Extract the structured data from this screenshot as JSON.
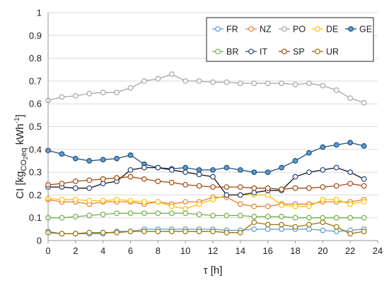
{
  "chart_data": {
    "type": "line",
    "title": "",
    "xlabel": "τ [h]",
    "ylabel": {
      "main": "CI [kg",
      "sub1": "CO",
      "sub2": "2",
      "sub3": "eq",
      "unit": " kWh",
      "sup": "-1",
      "close": "]"
    },
    "xlim": [
      0,
      24
    ],
    "ylim": [
      0,
      1
    ],
    "xticks": [
      0,
      2,
      4,
      6,
      8,
      10,
      12,
      14,
      16,
      18,
      20,
      22,
      24
    ],
    "yticks": [
      0,
      0.1,
      0.2,
      0.3,
      0.4,
      0.5,
      0.6,
      0.7,
      0.8,
      0.9,
      1
    ],
    "ytick_labels": [
      "0",
      "0.1",
      "0.2",
      "0.3",
      "0.4",
      "0.5",
      "0.6",
      "0.7",
      "0.8",
      "0.9",
      "1"
    ],
    "grid": {
      "horizontal": true,
      "vertical": false
    },
    "legend": {
      "placement": "top-right",
      "columns": 5
    },
    "x": [
      0,
      1,
      2,
      3,
      4,
      5,
      6,
      7,
      8,
      9,
      10,
      11,
      12,
      13,
      14,
      15,
      16,
      17,
      18,
      19,
      20,
      21,
      22,
      23
    ],
    "series": [
      {
        "name": "FR",
        "color": "#5b9bd5",
        "values": [
          0.04,
          0.03,
          0.03,
          0.03,
          0.03,
          0.04,
          0.04,
          0.05,
          0.05,
          0.05,
          0.05,
          0.05,
          0.05,
          0.045,
          0.045,
          0.05,
          0.05,
          0.05,
          0.05,
          0.05,
          0.045,
          0.04,
          0.045,
          0.05
        ]
      },
      {
        "name": "NZ",
        "color": "#ed7d31",
        "values": [
          0.18,
          0.17,
          0.17,
          0.16,
          0.17,
          0.17,
          0.17,
          0.16,
          0.17,
          0.16,
          0.17,
          0.17,
          0.19,
          0.19,
          0.16,
          0.15,
          0.15,
          0.16,
          0.16,
          0.16,
          0.17,
          0.17,
          0.17,
          0.18
        ]
      },
      {
        "name": "PO",
        "color": "#a5a5a5",
        "values": [
          0.615,
          0.63,
          0.635,
          0.645,
          0.65,
          0.65,
          0.67,
          0.7,
          0.71,
          0.73,
          0.7,
          0.7,
          0.695,
          0.695,
          0.69,
          0.69,
          0.69,
          0.69,
          0.685,
          0.69,
          0.68,
          0.66,
          0.625,
          0.605
        ]
      },
      {
        "name": "DE",
        "color": "#ffc000",
        "values": [
          0.185,
          0.18,
          0.18,
          0.175,
          0.175,
          0.18,
          0.175,
          0.17,
          0.17,
          0.15,
          0.14,
          0.16,
          0.18,
          0.2,
          0.2,
          0.2,
          0.2,
          0.155,
          0.15,
          0.15,
          0.18,
          0.18,
          0.16,
          0.17
        ]
      },
      {
        "name": "GE",
        "color": "#5b9bd5",
        "dark": true,
        "edge": "#1f4e79",
        "values": [
          0.395,
          0.38,
          0.36,
          0.35,
          0.355,
          0.36,
          0.375,
          0.335,
          0.32,
          0.315,
          0.32,
          0.31,
          0.31,
          0.32,
          0.31,
          0.3,
          0.3,
          0.32,
          0.35,
          0.385,
          0.41,
          0.42,
          0.43,
          0.415
        ]
      },
      {
        "name": "BR",
        "color": "#70ad47",
        "values": [
          0.1,
          0.1,
          0.105,
          0.11,
          0.115,
          0.12,
          0.12,
          0.12,
          0.12,
          0.12,
          0.12,
          0.115,
          0.11,
          0.11,
          0.11,
          0.105,
          0.105,
          0.105,
          0.1,
          0.1,
          0.1,
          0.1,
          0.1,
          0.1
        ]
      },
      {
        "name": "IT",
        "color": "#264478",
        "values": [
          0.235,
          0.235,
          0.23,
          0.23,
          0.25,
          0.26,
          0.31,
          0.32,
          0.32,
          0.31,
          0.3,
          0.29,
          0.28,
          0.2,
          0.2,
          0.21,
          0.22,
          0.22,
          0.28,
          0.3,
          0.31,
          0.32,
          0.3,
          0.27
        ]
      },
      {
        "name": "SP",
        "color": "#9e480e",
        "values": [
          0.245,
          0.25,
          0.26,
          0.265,
          0.27,
          0.275,
          0.28,
          0.27,
          0.26,
          0.255,
          0.245,
          0.24,
          0.235,
          0.235,
          0.235,
          0.23,
          0.23,
          0.225,
          0.23,
          0.23,
          0.235,
          0.24,
          0.25,
          0.24
        ]
      },
      {
        "name": "UR",
        "color": "#997300",
        "values": [
          0.035,
          0.03,
          0.03,
          0.035,
          0.035,
          0.035,
          0.04,
          0.04,
          0.04,
          0.04,
          0.04,
          0.04,
          0.04,
          0.035,
          0.035,
          0.08,
          0.07,
          0.07,
          0.06,
          0.07,
          0.08,
          0.06,
          0.03,
          0.04
        ]
      }
    ]
  }
}
